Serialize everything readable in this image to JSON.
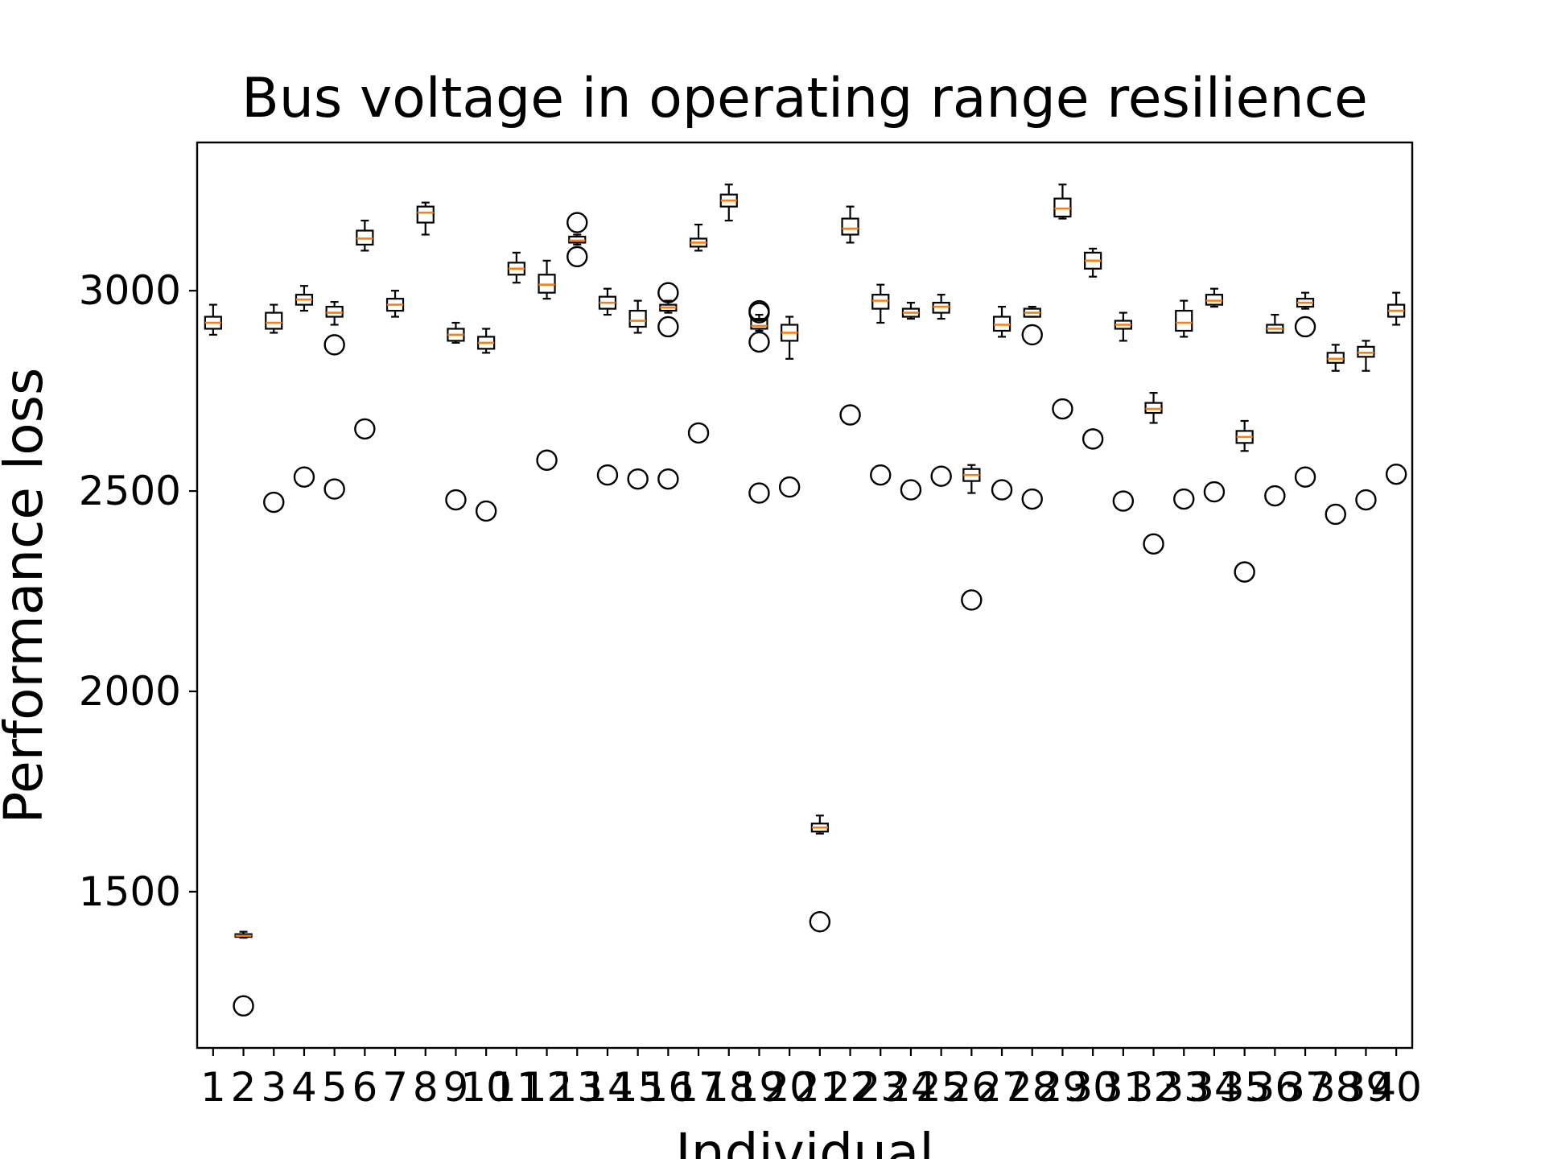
{
  "chart_data": {
    "type": "boxplot",
    "title": "Bus voltage in operating range resilience",
    "xlabel": "Individual",
    "ylabel": "Performance loss",
    "categories": [
      "1",
      "2",
      "3",
      "4",
      "5",
      "6",
      "7",
      "8",
      "9",
      "10",
      "11",
      "12",
      "13",
      "14",
      "15",
      "16",
      "17",
      "18",
      "19",
      "20",
      "21",
      "22",
      "23",
      "24",
      "25",
      "26",
      "27",
      "28",
      "29",
      "30",
      "31",
      "32",
      "33",
      "34",
      "35",
      "36",
      "37",
      "38",
      "39",
      "40"
    ],
    "ylim": [
      1110,
      3370
    ],
    "yticks": [
      1500,
      2000,
      2500,
      3000
    ],
    "grid": false,
    "colors": {
      "box": "#000000",
      "median": "#ff7f0e",
      "flier": "#000000"
    },
    "boxes": [
      {
        "x": "1",
        "whislo": 2890,
        "q1": 2905,
        "med": 2920,
        "q3": 2935,
        "whishi": 2965,
        "fliers": []
      },
      {
        "x": "2",
        "whislo": 1385,
        "q1": 1387,
        "med": 1390,
        "q3": 1394,
        "whishi": 1400,
        "fliers": [
          1215
        ]
      },
      {
        "x": "3",
        "whislo": 2895,
        "q1": 2905,
        "med": 2920,
        "q3": 2945,
        "whishi": 2965,
        "fliers": [
          2472
        ]
      },
      {
        "x": "4",
        "whislo": 2950,
        "q1": 2965,
        "med": 2978,
        "q3": 2990,
        "whishi": 3012,
        "fliers": [
          2535
        ]
      },
      {
        "x": "5",
        "whislo": 2915,
        "q1": 2935,
        "med": 2945,
        "q3": 2960,
        "whishi": 2972,
        "fliers": [
          2505,
          2865
        ]
      },
      {
        "x": "6",
        "whislo": 3100,
        "q1": 3115,
        "med": 3130,
        "q3": 3150,
        "whishi": 3175,
        "fliers": [
          2655
        ]
      },
      {
        "x": "7",
        "whislo": 2935,
        "q1": 2950,
        "med": 2965,
        "q3": 2980,
        "whishi": 3000,
        "fliers": []
      },
      {
        "x": "8",
        "whislo": 3140,
        "q1": 3170,
        "med": 3195,
        "q3": 3210,
        "whishi": 3220,
        "fliers": []
      },
      {
        "x": "9",
        "whislo": 2870,
        "q1": 2875,
        "med": 2890,
        "q3": 2905,
        "whishi": 2920,
        "fliers": [
          2478
        ]
      },
      {
        "x": "10",
        "whislo": 2845,
        "q1": 2855,
        "med": 2870,
        "q3": 2885,
        "whishi": 2905,
        "fliers": [
          2450
        ]
      },
      {
        "x": "11",
        "whislo": 3020,
        "q1": 3040,
        "med": 3055,
        "q3": 3070,
        "whishi": 3095,
        "fliers": []
      },
      {
        "x": "12",
        "whislo": 2980,
        "q1": 2995,
        "med": 3015,
        "q3": 3040,
        "whishi": 3075,
        "fliers": [
          2577
        ]
      },
      {
        "x": "13",
        "whislo": 3115,
        "q1": 3120,
        "med": 3125,
        "q3": 3135,
        "whishi": 3140,
        "fliers": [
          3085,
          3170
        ]
      },
      {
        "x": "14",
        "whislo": 2940,
        "q1": 2955,
        "med": 2970,
        "q3": 2985,
        "whishi": 3005,
        "fliers": [
          2540
        ]
      },
      {
        "x": "15",
        "whislo": 2895,
        "q1": 2910,
        "med": 2925,
        "q3": 2950,
        "whishi": 2975,
        "fliers": [
          2530
        ]
      },
      {
        "x": "16",
        "whislo": 2945,
        "q1": 2950,
        "med": 2958,
        "q3": 2965,
        "whishi": 2975,
        "fliers": [
          2530,
          2910,
          2995
        ]
      },
      {
        "x": "17",
        "whislo": 3100,
        "q1": 3110,
        "med": 3120,
        "q3": 3130,
        "whishi": 3165,
        "fliers": [
          2645
        ]
      },
      {
        "x": "18",
        "whislo": 3175,
        "q1": 3210,
        "med": 3225,
        "q3": 3240,
        "whishi": 3265,
        "fliers": []
      },
      {
        "x": "19",
        "whislo": 2900,
        "q1": 2905,
        "med": 2912,
        "q3": 2930,
        "whishi": 2940,
        "fliers": [
          2495,
          2872,
          2945,
          2950
        ]
      },
      {
        "x": "20",
        "whislo": 2830,
        "q1": 2875,
        "med": 2895,
        "q3": 2915,
        "whishi": 2935,
        "fliers": [
          2510
        ]
      },
      {
        "x": "21",
        "whislo": 1645,
        "q1": 1650,
        "med": 1660,
        "q3": 1670,
        "whishi": 1690,
        "fliers": [
          1425
        ]
      },
      {
        "x": "22",
        "whislo": 3120,
        "q1": 3140,
        "med": 3155,
        "q3": 3180,
        "whishi": 3210,
        "fliers": [
          2690
        ]
      },
      {
        "x": "23",
        "whislo": 2920,
        "q1": 2955,
        "med": 2975,
        "q3": 2990,
        "whishi": 3015,
        "fliers": [
          2540
        ]
      },
      {
        "x": "24",
        "whislo": 2930,
        "q1": 2935,
        "med": 2945,
        "q3": 2955,
        "whishi": 2970,
        "fliers": [
          2503
        ]
      },
      {
        "x": "25",
        "whislo": 2930,
        "q1": 2945,
        "med": 2960,
        "q3": 2970,
        "whishi": 2990,
        "fliers": [
          2537
        ]
      },
      {
        "x": "26",
        "whislo": 2495,
        "q1": 2525,
        "med": 2540,
        "q3": 2555,
        "whishi": 2565,
        "fliers": [
          2228
        ]
      },
      {
        "x": "27",
        "whislo": 2885,
        "q1": 2900,
        "med": 2915,
        "q3": 2935,
        "whishi": 2960,
        "fliers": [
          2503
        ]
      },
      {
        "x": "28",
        "whislo": 2935,
        "q1": 2935,
        "med": 2945,
        "q3": 2955,
        "whishi": 2960,
        "fliers": [
          2480,
          2890
        ]
      },
      {
        "x": "29",
        "whislo": 3180,
        "q1": 3185,
        "med": 3205,
        "q3": 3230,
        "whishi": 3265,
        "fliers": [
          2705
        ]
      },
      {
        "x": "30",
        "whislo": 3035,
        "q1": 3055,
        "med": 3075,
        "q3": 3095,
        "whishi": 3105,
        "fliers": [
          2630
        ]
      },
      {
        "x": "31",
        "whislo": 2875,
        "q1": 2905,
        "med": 2915,
        "q3": 2925,
        "whishi": 2945,
        "fliers": [
          2475
        ]
      },
      {
        "x": "32",
        "whislo": 2670,
        "q1": 2695,
        "med": 2705,
        "q3": 2720,
        "whishi": 2745,
        "fliers": [
          2368
        ]
      },
      {
        "x": "33",
        "whislo": 2885,
        "q1": 2900,
        "med": 2920,
        "q3": 2950,
        "whishi": 2975,
        "fliers": [
          2480
        ]
      },
      {
        "x": "34",
        "whislo": 2960,
        "q1": 2965,
        "med": 2975,
        "q3": 2990,
        "whishi": 3005,
        "fliers": [
          2498
        ]
      },
      {
        "x": "35",
        "whislo": 2600,
        "q1": 2620,
        "med": 2635,
        "q3": 2650,
        "whishi": 2675,
        "fliers": [
          2298
        ]
      },
      {
        "x": "36",
        "whislo": 2895,
        "q1": 2895,
        "med": 2905,
        "q3": 2915,
        "whishi": 2940,
        "fliers": [
          2488
        ]
      },
      {
        "x": "37",
        "whislo": 2955,
        "q1": 2960,
        "med": 2970,
        "q3": 2980,
        "whishi": 2995,
        "fliers": [
          2535,
          2910
        ]
      },
      {
        "x": "38",
        "whislo": 2800,
        "q1": 2820,
        "med": 2830,
        "q3": 2845,
        "whishi": 2865,
        "fliers": [
          2442
        ]
      },
      {
        "x": "39",
        "whislo": 2800,
        "q1": 2835,
        "med": 2845,
        "q3": 2860,
        "whishi": 2875,
        "fliers": [
          2478
        ]
      },
      {
        "x": "40",
        "whislo": 2915,
        "q1": 2935,
        "med": 2950,
        "q3": 2965,
        "whishi": 2995,
        "fliers": [
          2542
        ]
      }
    ]
  }
}
